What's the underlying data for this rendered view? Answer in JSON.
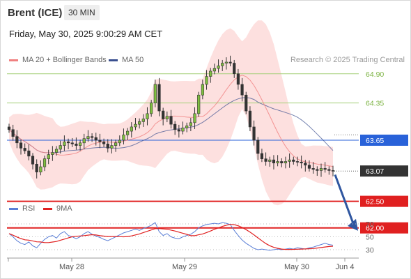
{
  "header": {
    "instrument": "Brent (ICE)",
    "timeframe": "30 MIN"
  },
  "timestamp": "Friday, May 30, 2025 9:00:29 AM CET",
  "legend": {
    "ma20_label": "MA 20 + Bollinger Bands",
    "ma50_label": "MA 50",
    "credit": "Research © 2025 Trading Central"
  },
  "price_levels": [
    {
      "value": 64.9,
      "label": "64.90",
      "style": "green-line",
      "color": "#7cb342"
    },
    {
      "value": 64.35,
      "label": "64.35",
      "style": "green-line",
      "color": "#7cb342"
    },
    {
      "value": 63.65,
      "label": "63.65",
      "style": "blue-box",
      "color": "#2962d9"
    },
    {
      "value": 63.07,
      "label": "63.07",
      "style": "dark-box",
      "color": "#333333"
    },
    {
      "value": 62.5,
      "label": "62.50",
      "style": "red-box",
      "color": "#e02020"
    },
    {
      "value": 62.0,
      "label": "62.00",
      "style": "red-box",
      "color": "#e02020"
    }
  ],
  "rsi_legend": {
    "rsi_label": "RSI",
    "ma_label": "9MA"
  },
  "rsi_axis": [
    "70",
    "50",
    "30"
  ],
  "x_axis": [
    "May 28",
    "May 29",
    "May 30",
    "Jun 4"
  ],
  "colors": {
    "ma20": "#f08080",
    "ma50": "#3a4f8f",
    "band_fill": "#fcd6d4",
    "rsi": "#5b7fd6",
    "rsi_ma": "#e02020"
  },
  "chart_data": {
    "type": "candlestick",
    "price_scale_ticks": [
      64.9,
      64.35,
      63.65,
      63.07,
      62.5,
      62.0
    ],
    "close_series": [
      63.85,
      63.72,
      63.6,
      63.5,
      63.45,
      63.35,
      63.2,
      63.05,
      63.15,
      63.3,
      63.38,
      63.42,
      63.48,
      63.55,
      63.62,
      63.6,
      63.58,
      63.55,
      63.6,
      63.68,
      63.72,
      63.7,
      63.65,
      63.62,
      63.58,
      63.5,
      63.55,
      63.6,
      63.65,
      63.75,
      63.82,
      63.9,
      63.95,
      64.0,
      64.05,
      64.15,
      64.35,
      64.7,
      64.2,
      64.05,
      64.1,
      63.95,
      63.85,
      63.82,
      63.88,
      63.92,
      63.98,
      64.15,
      64.5,
      64.7,
      64.85,
      64.95,
      65.0,
      65.05,
      65.1,
      65.12,
      65.1,
      64.9,
      64.7,
      64.5,
      64.2,
      63.9,
      63.65,
      63.4,
      63.3,
      63.25,
      63.28,
      63.22,
      63.25,
      63.22,
      63.25,
      63.28,
      63.25,
      63.24,
      63.22,
      63.18,
      63.12,
      63.1,
      63.08,
      63.12,
      63.1,
      63.08,
      63.07
    ],
    "rsi_values": [
      55,
      50,
      44,
      40,
      38,
      42,
      36,
      33,
      40,
      46,
      50,
      52,
      48,
      55,
      58,
      52,
      50,
      47,
      50,
      55,
      58,
      54,
      51,
      49,
      46,
      44,
      47,
      50,
      53,
      56,
      58,
      60,
      62,
      60,
      63,
      65,
      68,
      72,
      58,
      52,
      55,
      50,
      48,
      47,
      50,
      52,
      54,
      58,
      64,
      67,
      69,
      70,
      71,
      70,
      72,
      71,
      69,
      60,
      52,
      45,
      40,
      36,
      32,
      30,
      31,
      30,
      29,
      30,
      31,
      30,
      31,
      32,
      31,
      33,
      32,
      31,
      33,
      34,
      36,
      38,
      40,
      38,
      37
    ]
  }
}
